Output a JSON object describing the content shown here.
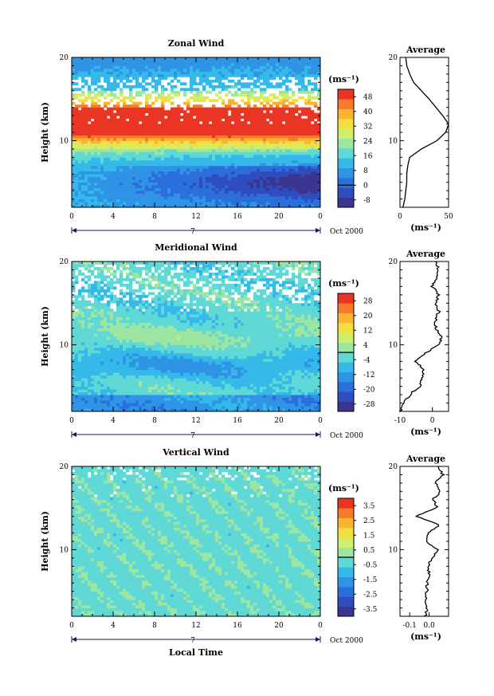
{
  "colorscale": [
    "#3a3690",
    "#2f4dbf",
    "#2b6fdc",
    "#2f93e6",
    "#35b9e8",
    "#5fd8d6",
    "#9ce6a2",
    "#d1ee6a",
    "#f3e040",
    "#f9b532",
    "#f57b2a",
    "#ea3525"
  ],
  "zero_color": "#7fe0ee",
  "common": {
    "date_label": "Oct 2000",
    "day_label": "7",
    "x_ticks": [
      "0",
      "4",
      "8",
      "12",
      "16",
      "20",
      "0"
    ],
    "x_title": "Local Time",
    "y_title": "Height (km)",
    "y_ticks": [
      "10",
      "20"
    ],
    "unit_label": "(ms⁻¹)",
    "avg_title": "Average",
    "avg_xlabel": "(ms⁻¹)"
  },
  "chart_data": [
    {
      "type": "heatmap",
      "title": "Zonal Wind",
      "ylabel": "Height (km)",
      "ylim": [
        2,
        20
      ],
      "xlim": [
        0,
        24
      ],
      "colorbar": {
        "ticks": [
          "48",
          "40",
          "32",
          "24",
          "16",
          "8",
          "0",
          "-8"
        ],
        "range": [
          -12,
          52
        ]
      },
      "field_description_values": {
        "jet_peak_height_km": 12,
        "jet_peak_ms": 50
      },
      "profile": {
        "title": "Average",
        "xlim": [
          0,
          50
        ],
        "x_ticks": [
          "0",
          "50"
        ],
        "heights": [
          2,
          3,
          4,
          5,
          6,
          7,
          8,
          9,
          10,
          11,
          12,
          13,
          14,
          15,
          16,
          17,
          18,
          19,
          20
        ],
        "values": [
          3,
          5,
          6,
          7,
          7,
          8,
          10,
          22,
          38,
          47,
          50,
          44,
          37,
          30,
          22,
          14,
          10,
          7,
          6
        ]
      }
    },
    {
      "type": "heatmap",
      "title": "Meridional Wind",
      "ylabel": "Height (km)",
      "ylim": [
        2,
        20
      ],
      "xlim": [
        0,
        24
      ],
      "colorbar": {
        "ticks": [
          "28",
          "20",
          "12",
          "4",
          "-4",
          "-12",
          "-20",
          "-28"
        ],
        "range": [
          -32,
          32
        ]
      },
      "profile": {
        "title": "Average",
        "xlim": [
          -10,
          5
        ],
        "x_ticks": [
          "-10",
          "0"
        ],
        "heights": [
          2,
          3,
          4,
          5,
          6,
          7,
          8,
          9,
          10,
          11,
          12,
          13,
          14,
          15,
          16,
          17,
          18,
          19,
          20
        ],
        "values": [
          -10,
          -9,
          -7,
          -4,
          -3,
          -3,
          -5,
          -2,
          2,
          3,
          1,
          1,
          2,
          1,
          2,
          0,
          1,
          2,
          1
        ]
      }
    },
    {
      "type": "heatmap",
      "title": "Vertical Wind",
      "ylabel": "Height (km)",
      "ylim": [
        2,
        20
      ],
      "xlim": [
        0,
        24
      ],
      "colorbar": {
        "ticks": [
          "3.5",
          "2.5",
          "1.5",
          "0.5",
          "-0.5",
          "-1.5",
          "-2.5",
          "-3.5"
        ],
        "range": [
          -4,
          4
        ]
      },
      "profile": {
        "title": "Average",
        "xlim": [
          -0.15,
          0.1
        ],
        "x_ticks": [
          "-0.1",
          "0.0"
        ],
        "heights": [
          2,
          3,
          4,
          5,
          6,
          7,
          8,
          9,
          10,
          11,
          12,
          13,
          14,
          15,
          16,
          17,
          18,
          19,
          20
        ],
        "values": [
          -0.02,
          -0.01,
          -0.02,
          -0.01,
          -0.01,
          0.0,
          -0.01,
          0.02,
          0.04,
          -0.01,
          0.0,
          0.05,
          -0.07,
          0.04,
          0.02,
          0.06,
          0.03,
          0.07,
          0.05
        ]
      }
    }
  ]
}
